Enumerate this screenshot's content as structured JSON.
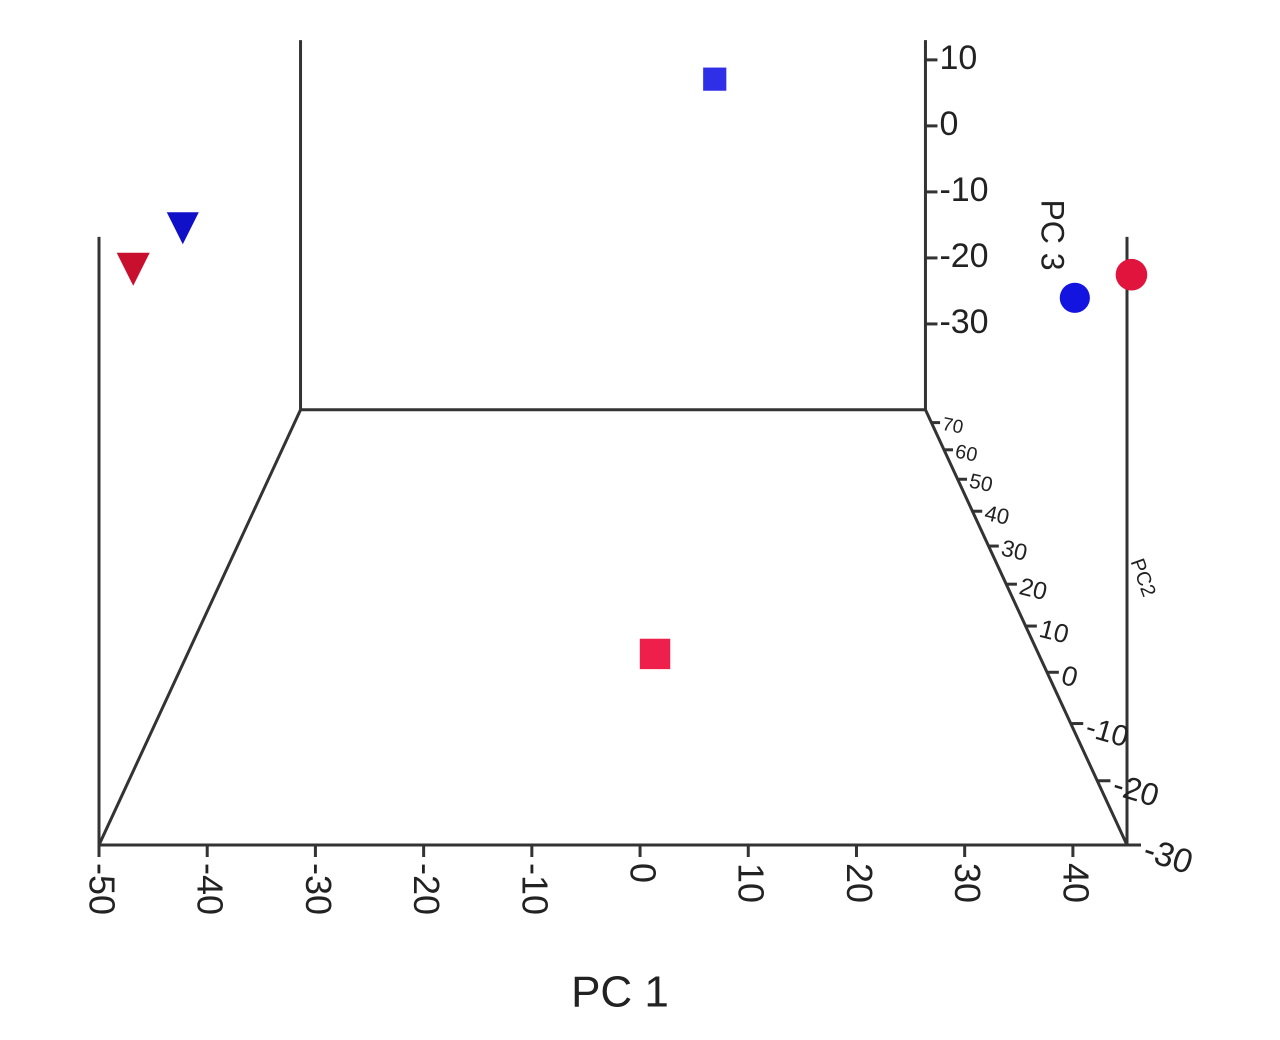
{
  "chart_data": {
    "type": "scatter3d",
    "x_label": "PC 1",
    "y_label": "PC2",
    "z_label": "PC 3",
    "xlim": [
      -50,
      45
    ],
    "ylim": [
      -30,
      75
    ],
    "zlim": [
      -43,
      13
    ],
    "xticks": [
      -50,
      -40,
      -30,
      -20,
      -10,
      0,
      10,
      20,
      30,
      40
    ],
    "yticks": [
      -30,
      -20,
      -10,
      0,
      10,
      20,
      30,
      40,
      50,
      60,
      70
    ],
    "zticks": [
      -30,
      -20,
      -10,
      0,
      10
    ],
    "x": [
      2.1,
      12.1,
      -44.7,
      -48.2,
      42.8,
      46
    ],
    "y": [
      0,
      60,
      -20,
      -25,
      -20,
      -28
    ],
    "z": [
      -41,
      10,
      11,
      8.5,
      4.2,
      8.9
    ],
    "colors": [
      "#ee1f4a",
      "#2f2fe8",
      "#1010c8",
      "#c8102e",
      "#1414e0",
      "#e0143c"
    ],
    "markers": [
      "square",
      "square",
      "triangle",
      "triangle",
      "circle",
      "circle"
    ]
  }
}
